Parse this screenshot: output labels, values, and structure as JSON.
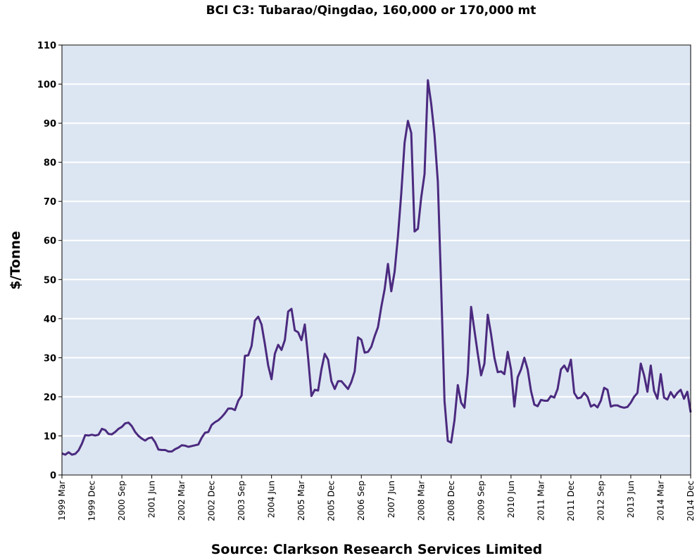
{
  "chart_data": {
    "type": "line",
    "title": "BCI C3: Tubarao/Qingdao, 160,000 or 170,000 mt",
    "y_label": "$/Tonne",
    "source": "Source: Clarkson Research Services Limited",
    "color": "#4b2a7f",
    "grid": true,
    "ylim": [
      0,
      110
    ],
    "yticks": [
      0,
      10,
      20,
      30,
      40,
      50,
      60,
      70,
      80,
      90,
      100,
      110
    ],
    "categories": [
      "1999 Mar",
      null,
      null,
      null,
      null,
      null,
      null,
      null,
      null,
      "1999 Dec",
      null,
      null,
      null,
      null,
      null,
      null,
      null,
      null,
      "2000 Sep",
      null,
      null,
      null,
      null,
      null,
      null,
      null,
      null,
      "2001 Jun",
      null,
      null,
      null,
      null,
      null,
      null,
      null,
      null,
      "2002 Mar",
      null,
      null,
      null,
      null,
      null,
      null,
      null,
      null,
      "2002 Dec",
      null,
      null,
      null,
      null,
      null,
      null,
      null,
      null,
      "2003 Sep",
      null,
      null,
      null,
      null,
      null,
      null,
      null,
      null,
      "2004 Jun",
      null,
      null,
      null,
      null,
      null,
      null,
      null,
      null,
      "2005 Mar",
      null,
      null,
      null,
      null,
      null,
      null,
      null,
      null,
      "2005 Dec",
      null,
      null,
      null,
      null,
      null,
      null,
      null,
      null,
      "2006 Sep",
      null,
      null,
      null,
      null,
      null,
      null,
      null,
      null,
      "2007 Jun",
      null,
      null,
      null,
      null,
      null,
      null,
      null,
      null,
      "2008 Mar",
      null,
      null,
      null,
      null,
      null,
      null,
      null,
      null,
      "2008 Dec",
      null,
      null,
      null,
      null,
      null,
      null,
      null,
      null,
      "2009 Sep",
      null,
      null,
      null,
      null,
      null,
      null,
      null,
      null,
      "2010 Jun",
      null,
      null,
      null,
      null,
      null,
      null,
      null,
      null,
      "2011 Mar",
      null,
      null,
      null,
      null,
      null,
      null,
      null,
      null,
      "2011 Dec",
      null,
      null,
      null,
      null,
      null,
      null,
      null,
      null,
      "2012 Sep",
      null,
      null,
      null,
      null,
      null,
      null,
      null,
      null,
      "2013 Jun",
      null,
      null,
      null,
      null,
      null,
      null,
      null,
      null,
      "2014 Mar",
      null,
      null,
      null,
      null,
      null,
      null,
      null,
      null,
      "2014 Dec"
    ],
    "values": [
      5.5,
      5.2,
      5.8,
      5.2,
      5.4,
      6.3,
      8,
      10.2,
      10.1,
      10.3,
      10.1,
      10.3,
      11.8,
      11.5,
      10.5,
      10.4,
      11,
      11.8,
      12.3,
      13.2,
      13.4,
      12.5,
      11,
      10,
      9.3,
      8.8,
      9.4,
      9.6,
      8.4,
      6.5,
      6.4,
      6.4,
      6,
      6,
      6.6,
      7,
      7.6,
      7.5,
      7.2,
      7.4,
      7.6,
      7.8,
      9.5,
      10.8,
      11,
      12.8,
      13.5,
      14,
      14.8,
      15.8,
      17,
      17,
      16.6,
      19,
      20.3,
      30.5,
      30.6,
      33,
      39.5,
      40.5,
      38.5,
      33.5,
      28,
      24.5,
      31,
      33.3,
      32,
      34.5,
      41.8,
      42.5,
      37,
      36.5,
      34.5,
      38.5,
      30,
      20.2,
      21.8,
      21.6,
      27,
      31,
      29.5,
      24,
      22,
      24,
      24,
      23,
      22,
      23.8,
      26.5,
      35.2,
      34.6,
      31.3,
      31.5,
      32.8,
      35.5,
      37.8,
      43,
      47.5,
      54,
      47,
      52,
      61,
      72,
      85,
      90.6,
      87.5,
      62.3,
      63,
      71,
      77,
      101,
      95,
      87,
      75,
      48,
      19,
      8.7,
      8.3,
      14,
      23,
      18.5,
      17.2,
      26,
      43,
      37,
      31,
      25.5,
      28.5,
      41,
      36,
      30,
      26.3,
      26.5,
      25.8,
      31.5,
      27,
      17.5,
      25,
      27,
      30,
      27,
      21.5,
      18,
      17.6,
      19.2,
      19,
      19,
      20.2,
      19.8,
      22,
      27,
      28,
      26.5,
      29.5,
      21,
      19.6,
      19.8,
      21,
      20,
      17.5,
      18,
      17.3,
      19,
      22.3,
      21.8,
      17.5,
      17.8,
      17.8,
      17.4,
      17.2,
      17.4,
      18.5,
      20,
      21,
      28.5,
      25.5,
      21.3,
      28,
      21.5,
      19.5,
      25.8,
      19.8,
      19.3,
      21.2,
      19.8,
      21,
      21.8,
      19.5,
      21.3,
      16
    ]
  }
}
